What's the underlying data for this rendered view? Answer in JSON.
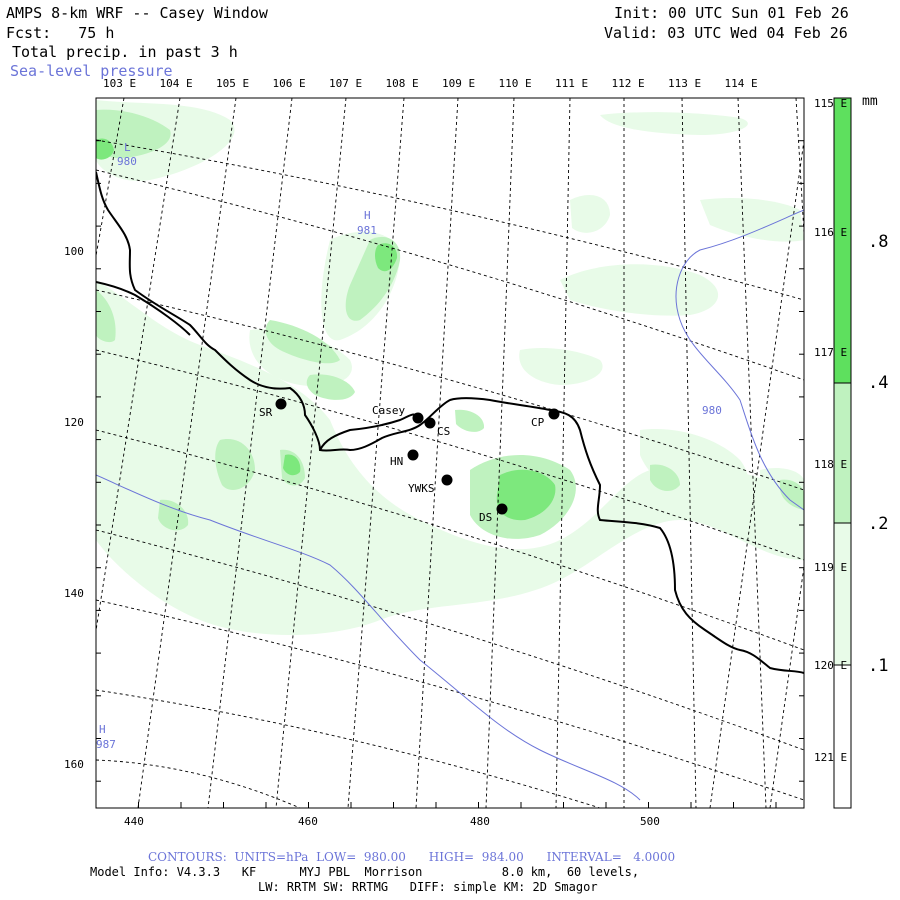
{
  "header": {
    "title": "AMPS 8-km WRF -- Casey Window",
    "forecast": "Fcst:   75 h",
    "field": "Total precip. in past 3 h",
    "overlay": "Sea-level pressure",
    "init": "Init: 00 UTC Sun 01 Feb 26",
    "valid": "Valid: 03 UTC Wed 04 Feb 26"
  },
  "colors": {
    "precip_light": "#e8fbe8",
    "precip_mid": "#bff2bf",
    "precip_strong": "#7de87d",
    "precip_heavy": "#5ee05e",
    "contour": "#6b74d8",
    "coast": "#000000"
  },
  "map": {
    "lon_labels_top": [
      "103 E",
      "104 E",
      "105 E",
      "106 E",
      "107 E",
      "108 E",
      "109 E",
      "110 E",
      "111 E",
      "112 E",
      "113 E",
      "114 E"
    ],
    "lat_labels_right": [
      "115 E",
      "116 E",
      "117 E",
      "118 E",
      "119 E",
      "120 E",
      "121 E"
    ],
    "x_ticks": [
      "440",
      "460",
      "480",
      "500"
    ],
    "y_ticks": [
      "100",
      "120",
      "140",
      "160"
    ],
    "stations": [
      {
        "id": "SR",
        "label": "SR"
      },
      {
        "id": "Casey",
        "label": "Casey"
      },
      {
        "id": "CS",
        "label": "CS"
      },
      {
        "id": "HN",
        "label": "HN"
      },
      {
        "id": "YWKS",
        "label": "YWKS"
      },
      {
        "id": "DS",
        "label": "DS"
      },
      {
        "id": "CP",
        "label": "CP"
      }
    ],
    "pressure_labels": [
      {
        "id": "L980",
        "symbol": "L",
        "value": "980"
      },
      {
        "id": "H981",
        "symbol": "H",
        "value": "981"
      },
      {
        "id": "980east",
        "symbol": "",
        "value": "980"
      },
      {
        "id": "H987",
        "symbol": "H",
        "value": "987"
      }
    ]
  },
  "colorbar": {
    "unit": "mm",
    "labels": [
      ".8",
      ".4",
      ".2",
      ".1"
    ]
  },
  "footer": {
    "contours": "CONTOURS:  UNITS=hPa  LOW=  980.00      HIGH=  984.00      INTERVAL=   4.0000",
    "model_info": "Model Info: V4.3.3   KF      MYJ PBL  Morrison           8.0 km,  60 levels,",
    "physics": "LW: RRTM SW: RRTMG   DIFF: simple KM: 2D Smagor"
  }
}
